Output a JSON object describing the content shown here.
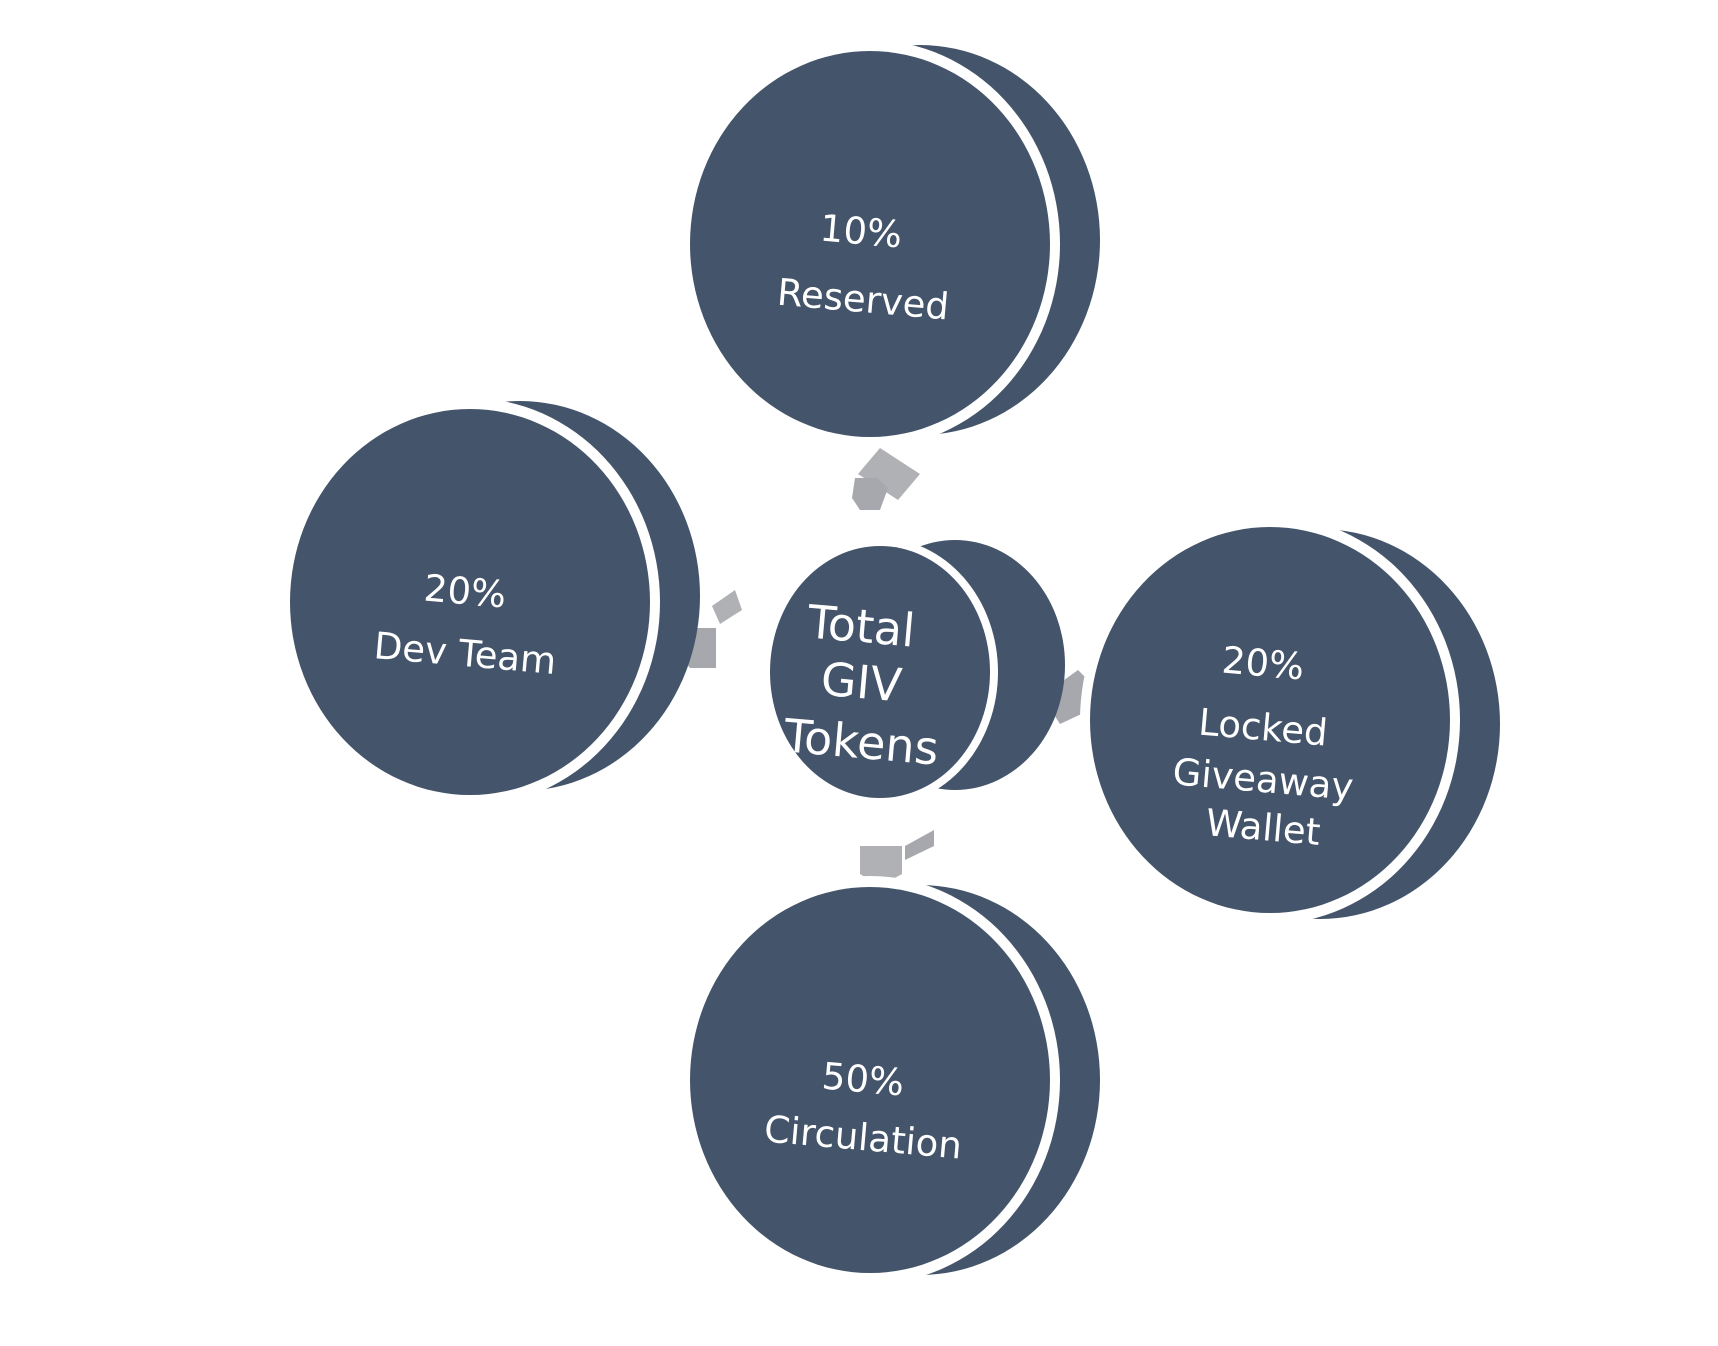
{
  "colors": {
    "disk": "#44546a",
    "rim": "#ffffff",
    "arrow": "#b0b1b5",
    "arrow_shadow": "#9fa0a5"
  },
  "center": {
    "line1": "Total",
    "line2": "GIV",
    "line3": "Tokens"
  },
  "segments": [
    {
      "percent": "10%",
      "label": "Reserved"
    },
    {
      "percent": "20%",
      "label": "Dev Team"
    },
    {
      "percent": "20%",
      "label_line1": "Locked",
      "label_line2": "Giveaway",
      "label_line3": "Wallet"
    },
    {
      "percent": "50%",
      "label": "Circulation"
    }
  ]
}
